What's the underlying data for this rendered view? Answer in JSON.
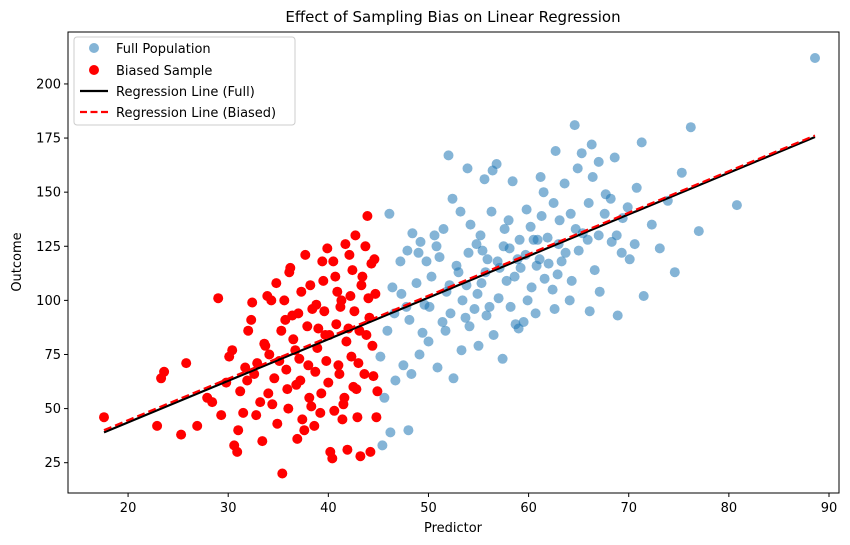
{
  "chart_data": {
    "type": "scatter",
    "title": "Effect of Sampling Bias on Linear Regression",
    "xlabel": "Predictor",
    "ylabel": "Outcome",
    "xlim": [
      14,
      91
    ],
    "ylim": [
      11,
      224
    ],
    "xticks": [
      20,
      30,
      40,
      50,
      60,
      70,
      80,
      90
    ],
    "yticks": [
      25,
      50,
      75,
      100,
      125,
      150,
      175,
      200
    ],
    "grid": false,
    "legend_position": "top-left",
    "colors": {
      "full_population": "#1f77b4",
      "biased_sample": "#ff0000",
      "line_full": "#000000",
      "line_biased": "#ff0000"
    },
    "series": [
      {
        "name": "Full Population",
        "kind": "scatter",
        "opacity": 0.55,
        "points": [
          [
            46.1,
            140
          ],
          [
            47.2,
            118
          ],
          [
            48.4,
            131
          ],
          [
            49.0,
            122
          ],
          [
            49.6,
            98
          ],
          [
            50.3,
            111
          ],
          [
            51.1,
            120
          ],
          [
            51.8,
            104
          ],
          [
            52.4,
            147
          ],
          [
            53.0,
            113
          ],
          [
            53.7,
            92
          ],
          [
            54.2,
            135
          ],
          [
            54.8,
            126
          ],
          [
            55.3,
            108
          ],
          [
            55.9,
            119
          ],
          [
            56.4,
            160
          ],
          [
            57.0,
            101
          ],
          [
            57.6,
            133
          ],
          [
            58.1,
            124
          ],
          [
            58.7,
            89
          ],
          [
            59.2,
            115
          ],
          [
            59.8,
            142
          ],
          [
            60.3,
            106
          ],
          [
            60.9,
            128
          ],
          [
            61.5,
            150
          ],
          [
            62.0,
            117
          ],
          [
            62.6,
            96
          ],
          [
            63.1,
            137
          ],
          [
            63.7,
            122
          ],
          [
            64.3,
            109
          ],
          [
            64.9,
            161
          ],
          [
            65.4,
            131
          ],
          [
            66.0,
            145
          ],
          [
            66.6,
            114
          ],
          [
            67.1,
            104
          ],
          [
            67.7,
            149
          ],
          [
            68.3,
            127
          ],
          [
            68.9,
            93
          ],
          [
            69.4,
            138
          ],
          [
            70.1,
            119
          ],
          [
            70.8,
            152
          ],
          [
            71.5,
            102
          ],
          [
            72.3,
            135
          ],
          [
            73.1,
            124
          ],
          [
            73.9,
            146
          ],
          [
            74.6,
            113
          ],
          [
            75.3,
            159
          ],
          [
            76.2,
            180
          ],
          [
            77.0,
            132
          ],
          [
            80.8,
            144
          ],
          [
            88.6,
            212
          ],
          [
            45.4,
            33
          ],
          [
            46.2,
            39
          ],
          [
            48.0,
            40
          ],
          [
            45.6,
            55
          ],
          [
            46.7,
            63
          ],
          [
            47.5,
            70
          ],
          [
            48.3,
            66
          ],
          [
            49.1,
            75
          ],
          [
            50.0,
            81
          ],
          [
            50.9,
            69
          ],
          [
            51.7,
            86
          ],
          [
            52.5,
            64
          ],
          [
            53.3,
            77
          ],
          [
            54.1,
            88
          ],
          [
            55.0,
            79
          ],
          [
            55.8,
            93
          ],
          [
            56.5,
            84
          ],
          [
            57.4,
            73
          ],
          [
            58.2,
            97
          ],
          [
            59.0,
            87
          ],
          [
            59.9,
            100
          ],
          [
            60.7,
            94
          ],
          [
            61.6,
            110
          ],
          [
            62.4,
            105
          ],
          [
            63.3,
            118
          ],
          [
            64.1,
            100
          ],
          [
            65.0,
            123
          ],
          [
            66.1,
            95
          ],
          [
            67.0,
            130
          ],
          [
            45.2,
            74
          ],
          [
            45.9,
            86
          ],
          [
            46.6,
            94
          ],
          [
            47.3,
            103
          ],
          [
            48.1,
            91
          ],
          [
            48.8,
            108
          ],
          [
            49.4,
            85
          ],
          [
            50.1,
            97
          ],
          [
            50.8,
            125
          ],
          [
            51.4,
            90
          ],
          [
            52.1,
            107
          ],
          [
            52.8,
            116
          ],
          [
            53.4,
            100
          ],
          [
            54.0,
            122
          ],
          [
            54.6,
            96
          ],
          [
            55.2,
            130
          ],
          [
            55.7,
            113
          ],
          [
            56.3,
            141
          ],
          [
            56.9,
            118
          ],
          [
            57.5,
            125
          ],
          [
            58.0,
            137
          ],
          [
            58.6,
            111
          ],
          [
            59.1,
            128
          ],
          [
            59.7,
            121
          ],
          [
            60.2,
            134
          ],
          [
            60.8,
            116
          ],
          [
            61.3,
            139
          ],
          [
            61.9,
            129
          ],
          [
            62.5,
            145
          ],
          [
            63.0,
            126
          ],
          [
            63.6,
            154
          ],
          [
            64.2,
            140
          ],
          [
            64.7,
            133
          ],
          [
            65.3,
            168
          ],
          [
            65.9,
            128
          ],
          [
            66.4,
            157
          ],
          [
            67.0,
            164
          ],
          [
            67.6,
            140
          ],
          [
            68.2,
            147
          ],
          [
            68.8,
            130
          ],
          [
            69.3,
            122
          ],
          [
            69.9,
            143
          ],
          [
            70.6,
            126
          ],
          [
            71.3,
            173
          ],
          [
            52.0,
            167
          ],
          [
            53.9,
            161
          ],
          [
            55.6,
            156
          ],
          [
            56.8,
            163
          ],
          [
            58.4,
            155
          ],
          [
            61.2,
            157
          ],
          [
            62.7,
            169
          ],
          [
            64.6,
            181
          ],
          [
            66.3,
            172
          ],
          [
            68.6,
            166
          ],
          [
            47.8,
            97
          ],
          [
            49.8,
            118
          ],
          [
            51.5,
            133
          ],
          [
            53.2,
            141
          ],
          [
            54.9,
            103
          ],
          [
            56.1,
            97
          ],
          [
            57.8,
            109
          ],
          [
            59.5,
            90
          ],
          [
            61.1,
            119
          ],
          [
            62.9,
            112
          ],
          [
            46.4,
            106
          ],
          [
            47.9,
            123
          ],
          [
            49.2,
            127
          ],
          [
            50.6,
            130
          ],
          [
            52.2,
            94
          ],
          [
            53.8,
            107
          ],
          [
            55.4,
            123
          ],
          [
            57.1,
            115
          ],
          [
            58.9,
            119
          ],
          [
            60.5,
            128
          ]
        ]
      },
      {
        "name": "Biased Sample",
        "kind": "scatter",
        "opacity": 1,
        "points": [
          [
            17.6,
            46
          ],
          [
            22.9,
            42
          ],
          [
            23.3,
            64
          ],
          [
            23.6,
            67
          ],
          [
            25.3,
            38
          ],
          [
            25.8,
            71
          ],
          [
            26.9,
            42
          ],
          [
            27.9,
            55
          ],
          [
            28.4,
            53
          ],
          [
            29.0,
            101
          ],
          [
            29.3,
            47
          ],
          [
            29.8,
            62
          ],
          [
            30.1,
            74
          ],
          [
            30.4,
            77
          ],
          [
            30.6,
            33
          ],
          [
            30.9,
            30
          ],
          [
            31.2,
            58
          ],
          [
            31.5,
            48
          ],
          [
            31.7,
            69
          ],
          [
            32.0,
            86
          ],
          [
            32.3,
            91
          ],
          [
            32.6,
            66
          ],
          [
            32.9,
            71
          ],
          [
            33.2,
            53
          ],
          [
            33.4,
            35
          ],
          [
            33.7,
            79
          ],
          [
            34.0,
            57
          ],
          [
            34.3,
            100
          ],
          [
            34.6,
            64
          ],
          [
            34.9,
            43
          ],
          [
            35.1,
            72
          ],
          [
            35.4,
            20
          ],
          [
            35.7,
            91
          ],
          [
            36.0,
            50
          ],
          [
            36.2,
            115
          ],
          [
            36.5,
            82
          ],
          [
            36.8,
            61
          ],
          [
            37.1,
            73
          ],
          [
            37.3,
            104
          ],
          [
            37.6,
            40
          ],
          [
            37.9,
            88
          ],
          [
            38.1,
            55
          ],
          [
            38.4,
            96
          ],
          [
            38.7,
            67
          ],
          [
            38.9,
            78
          ],
          [
            39.2,
            48
          ],
          [
            39.5,
            109
          ],
          [
            39.7,
            84
          ],
          [
            40.0,
            62
          ],
          [
            40.2,
            30
          ],
          [
            40.5,
            118
          ],
          [
            40.8,
            89
          ],
          [
            41.0,
            70
          ],
          [
            41.3,
            100
          ],
          [
            41.6,
            55
          ],
          [
            41.8,
            81
          ],
          [
            42.1,
            121
          ],
          [
            42.3,
            74
          ],
          [
            42.6,
            95
          ],
          [
            42.9,
            46
          ],
          [
            43.1,
            86
          ],
          [
            43.4,
            111
          ],
          [
            43.6,
            66
          ],
          [
            43.9,
            139
          ],
          [
            44.1,
            92
          ],
          [
            44.4,
            79
          ],
          [
            44.7,
            103
          ],
          [
            44.9,
            58
          ],
          [
            36.9,
            36
          ],
          [
            37.4,
            45
          ],
          [
            38.6,
            42
          ],
          [
            40.4,
            27
          ],
          [
            41.9,
            31
          ],
          [
            43.2,
            28
          ],
          [
            44.2,
            30
          ],
          [
            41.4,
            45
          ],
          [
            42.8,
            59
          ],
          [
            44.8,
            46
          ],
          [
            31.9,
            63
          ],
          [
            33.6,
            80
          ],
          [
            35.3,
            86
          ],
          [
            36.4,
            93
          ],
          [
            38.2,
            107
          ],
          [
            39.4,
            118
          ],
          [
            40.7,
            111
          ],
          [
            42.4,
            114
          ],
          [
            43.7,
            125
          ],
          [
            44.6,
            119
          ],
          [
            34.8,
            108
          ],
          [
            36.1,
            113
          ],
          [
            37.7,
            121
          ],
          [
            39.9,
            124
          ],
          [
            41.7,
            126
          ],
          [
            42.7,
            130
          ],
          [
            44.3,
            117
          ],
          [
            38.8,
            98
          ],
          [
            39.6,
            95
          ],
          [
            40.9,
            104
          ],
          [
            41.2,
            97
          ],
          [
            42.2,
            102
          ],
          [
            43.3,
            107
          ],
          [
            44.0,
            101
          ],
          [
            43.8,
            84
          ],
          [
            42.0,
            87
          ],
          [
            40.1,
            84
          ],
          [
            39.0,
            87
          ],
          [
            37.0,
            94
          ],
          [
            35.6,
            100
          ],
          [
            33.9,
            102
          ],
          [
            32.4,
            99
          ],
          [
            34.1,
            75
          ],
          [
            35.8,
            68
          ],
          [
            36.7,
            77
          ],
          [
            38.0,
            70
          ],
          [
            39.8,
            72
          ],
          [
            41.1,
            66
          ],
          [
            43.0,
            71
          ],
          [
            44.5,
            65
          ],
          [
            31.0,
            40
          ],
          [
            32.8,
            47
          ],
          [
            34.4,
            52
          ],
          [
            35.9,
            59
          ],
          [
            37.2,
            63
          ],
          [
            38.3,
            51
          ],
          [
            39.3,
            57
          ],
          [
            40.6,
            49
          ],
          [
            41.5,
            52
          ],
          [
            42.5,
            60
          ]
        ]
      },
      {
        "name": "Regression Line (Full)",
        "kind": "line",
        "style": "solid",
        "x": [
          17.6,
          88.6
        ],
        "y": [
          39.0,
          175.5
        ]
      },
      {
        "name": "Regression Line (Biased)",
        "kind": "line",
        "style": "dashed",
        "x": [
          17.6,
          88.6
        ],
        "y": [
          40.0,
          176.2
        ]
      }
    ]
  }
}
